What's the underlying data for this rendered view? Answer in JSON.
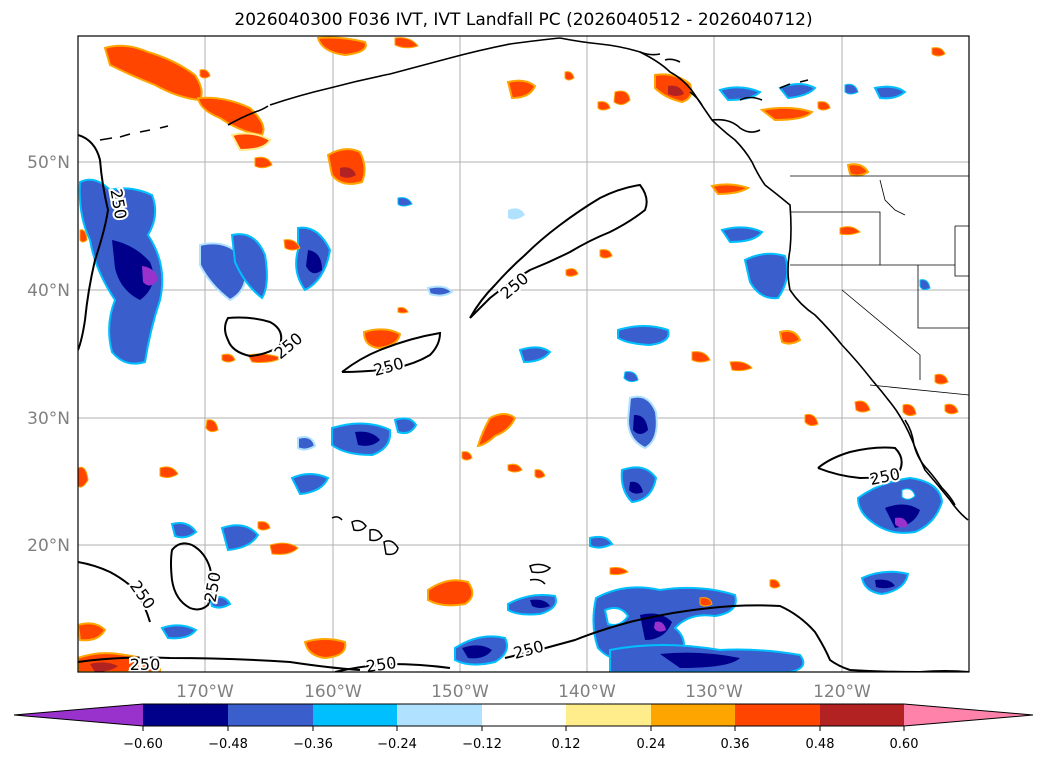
{
  "title": "2026040300 F036 IVT, IVT Landfall PC (2026040512 - 2026040712)",
  "map": {
    "lat_labels": [
      "50°N",
      "40°N",
      "30°N",
      "20°N"
    ],
    "lon_labels": [
      "170°W",
      "160°W",
      "150°W",
      "140°W",
      "130°W",
      "120°W"
    ],
    "contour_labels": [
      "250",
      "250",
      "250",
      "250",
      "250",
      "250",
      "250",
      "250",
      "250",
      "250"
    ]
  },
  "colorbar": {
    "colors": [
      "#9932cc",
      "#00008b",
      "#3a5fcd",
      "#00bfff",
      "#b0e2ff",
      "#ffffff",
      "#ffec8b",
      "#ffa500",
      "#ff4500",
      "#b22222",
      "#ff82ab"
    ],
    "ticks": [
      "−0.60",
      "−0.48",
      "−0.36",
      "−0.24",
      "−0.12",
      "0.12",
      "0.24",
      "0.36",
      "0.48",
      "0.60"
    ]
  }
}
